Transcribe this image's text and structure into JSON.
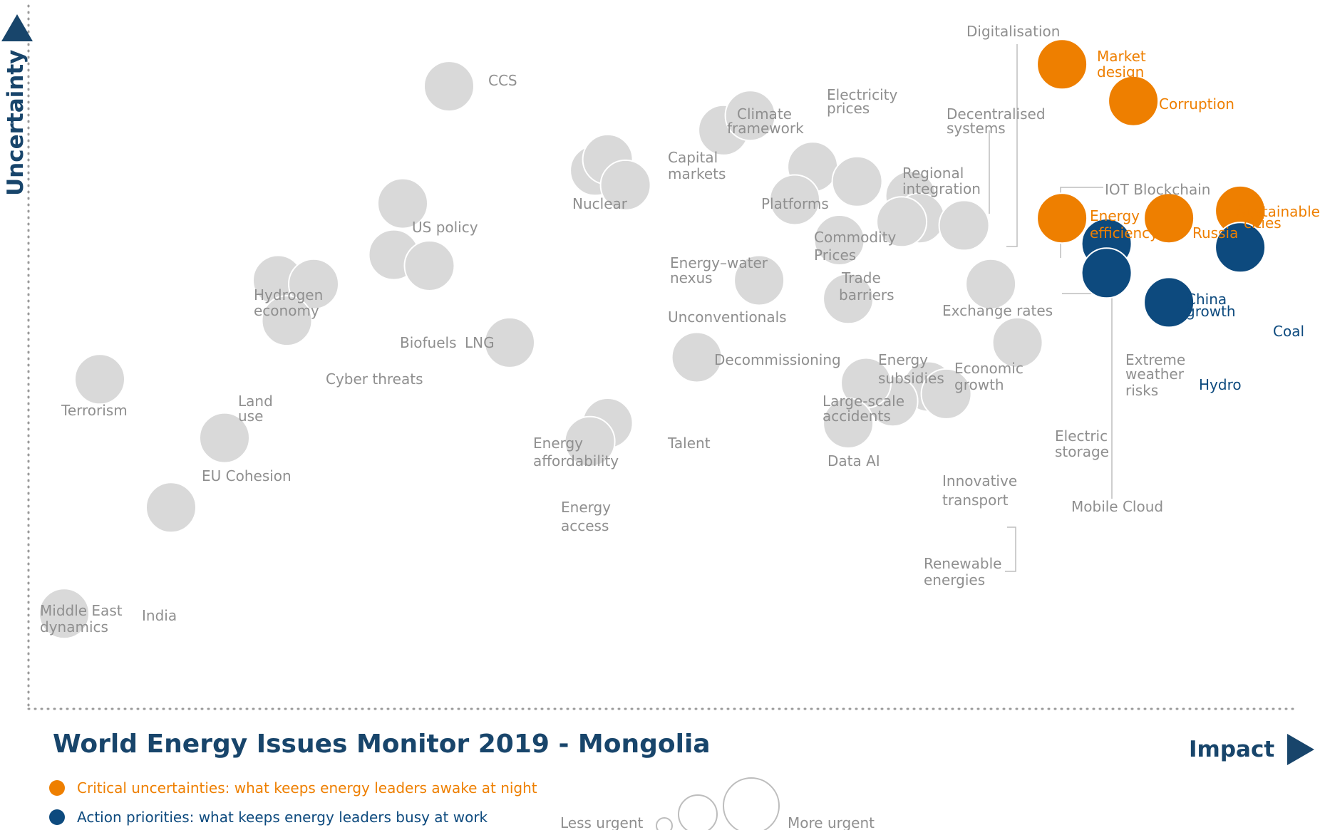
{
  "chart_data": {
    "type": "scatter",
    "title": "World Energy Issues Monitor 2019 - Mongolia",
    "xlabel": "Impact",
    "ylabel": "Uncertainty",
    "colors": {
      "critical": "#ee7f00",
      "action": "#0d4a7e",
      "other": "#d9d9d9"
    },
    "legend": {
      "critical": "Critical uncertainties: what keeps energy leaders awake at night",
      "action": "Action priorities: what keeps energy leaders busy at work",
      "less_urgent": "Less urgent",
      "more_urgent": "More urgent"
    },
    "points": [
      {
        "label": "CCS",
        "x": 23.6,
        "y": 85.0,
        "cat": "other"
      },
      {
        "label": "Nuclear",
        "x": 31.8,
        "y": 73.5,
        "cat": "other"
      },
      {
        "label": "Capital markets",
        "x": 32.5,
        "y": 75.0,
        "cat": "other"
      },
      {
        "label": "Energy–water nexus",
        "x": 33.5,
        "y": 71.5,
        "cat": "other"
      },
      {
        "label": "Climate framework",
        "x": 39.0,
        "y": 79.0,
        "cat": "other"
      },
      {
        "label": "Electricity prices",
        "x": 40.5,
        "y": 81.0,
        "cat": "other"
      },
      {
        "label": "Platforms",
        "x": 44.0,
        "y": 74.0,
        "cat": "other"
      },
      {
        "label": "Digitalisation",
        "x": 49.5,
        "y": 70.0,
        "cat": "other"
      },
      {
        "label": "Decentralised systems",
        "x": 50.0,
        "y": 67.0,
        "cat": "other"
      },
      {
        "label": "Regional integration",
        "x": 46.5,
        "y": 72.0,
        "cat": "other"
      },
      {
        "label": "Commodity Prices",
        "x": 43.0,
        "y": 69.5,
        "cat": "other"
      },
      {
        "label": "Trade barriers",
        "x": 45.5,
        "y": 64.0,
        "cat": "other"
      },
      {
        "label": "Exchange rates",
        "x": 49.0,
        "y": 66.5,
        "cat": "other"
      },
      {
        "label": "IOT Blockchain",
        "x": 52.5,
        "y": 66.0,
        "cat": "other"
      },
      {
        "label": "Unconventionals",
        "x": 41.0,
        "y": 58.5,
        "cat": "other"
      },
      {
        "label": "Energy subsidies",
        "x": 46.0,
        "y": 56.0,
        "cat": "other"
      },
      {
        "label": "US policy",
        "x": 21.0,
        "y": 69.0,
        "cat": "other"
      },
      {
        "label": "Biofuels",
        "x": 20.5,
        "y": 62.0,
        "cat": "other"
      },
      {
        "label": "LNG",
        "x": 22.5,
        "y": 60.5,
        "cat": "other"
      },
      {
        "label": "Hydrogen economy",
        "x": 14.0,
        "y": 58.5,
        "cat": "other"
      },
      {
        "label": "Cyber threats",
        "x": 16.0,
        "y": 58.0,
        "cat": "other"
      },
      {
        "label": "Land use",
        "x": 14.5,
        "y": 53.0,
        "cat": "other"
      },
      {
        "label": "Terrorism",
        "x": 4.0,
        "y": 45.0,
        "cat": "other"
      },
      {
        "label": "EU Cohesion",
        "x": 11.0,
        "y": 37.0,
        "cat": "other"
      },
      {
        "label": "India",
        "x": 8.0,
        "y": 27.5,
        "cat": "other"
      },
      {
        "label": "Middle East dynamics",
        "x": 2.0,
        "y": 13.0,
        "cat": "other"
      },
      {
        "label": "Energy affordability",
        "x": 27.0,
        "y": 50.0,
        "cat": "other"
      },
      {
        "label": "Talent",
        "x": 32.5,
        "y": 39.0,
        "cat": "other"
      },
      {
        "label": "Energy access",
        "x": 31.5,
        "y": 36.5,
        "cat": "other"
      },
      {
        "label": "Decommissioning",
        "x": 37.5,
        "y": 48.0,
        "cat": "other"
      },
      {
        "label": "Economic growth",
        "x": 50.5,
        "y": 44.0,
        "cat": "other"
      },
      {
        "label": "Innovative transport",
        "x": 48.5,
        "y": 42.0,
        "cat": "other"
      },
      {
        "label": "Large-scale accidents",
        "x": 47.0,
        "y": 44.5,
        "cat": "other"
      },
      {
        "label": "Data AI",
        "x": 46.0,
        "y": 39.0,
        "cat": "other"
      },
      {
        "label": "Renewable energies",
        "x": 51.5,
        "y": 43.0,
        "cat": "other"
      },
      {
        "label": "Electric storage",
        "x": 55.5,
        "y": 50.0,
        "cat": "other"
      },
      {
        "label": "Mobile Cloud",
        "x": 54.0,
        "y": 58.0,
        "cat": "other"
      },
      {
        "label": "Market design",
        "x": 58.0,
        "y": 88.0,
        "cat": "critical"
      },
      {
        "label": "Corruption",
        "x": 62.0,
        "y": 83.0,
        "cat": "critical"
      },
      {
        "label": "Energy efficiency",
        "x": 58.0,
        "y": 67.0,
        "cat": "critical"
      },
      {
        "label": "Russia",
        "x": 64.0,
        "y": 67.0,
        "cat": "critical"
      },
      {
        "label": "Sustainable cities",
        "x": 68.0,
        "y": 68.0,
        "cat": "critical"
      },
      {
        "label": "China growth",
        "x": 60.5,
        "y": 63.5,
        "cat": "action"
      },
      {
        "label": "Extreme weather risks",
        "x": 60.5,
        "y": 59.5,
        "cat": "action"
      },
      {
        "label": "Coal",
        "x": 68.0,
        "y": 63.0,
        "cat": "action"
      },
      {
        "label": "Hydro",
        "x": 64.0,
        "y": 55.5,
        "cat": "action"
      }
    ]
  }
}
